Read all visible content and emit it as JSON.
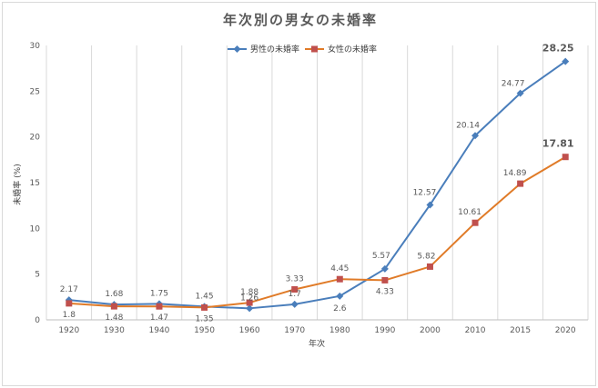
{
  "chart_data": {
    "type": "line",
    "title": "年次別の男女の未婚率",
    "xlabel": "年次",
    "ylabel": "未婚率 (%)",
    "ylim": [
      0,
      30
    ],
    "yticks": [
      "0",
      "5",
      "10",
      "15",
      "20",
      "25",
      "30"
    ],
    "categories": [
      "1920",
      "1930",
      "1940",
      "1950",
      "1960",
      "1970",
      "1980",
      "1990",
      "2000",
      "2010",
      "2015",
      "2020"
    ],
    "grid": "vertical",
    "legend": "top-center",
    "series": [
      {
        "name": "男性の未婚率",
        "color": "#4a7ebb",
        "marker": "diamond",
        "values": [
          2.17,
          1.68,
          1.75,
          1.45,
          1.26,
          1.7,
          2.6,
          5.57,
          12.57,
          20.14,
          24.77,
          28.25
        ],
        "labels": [
          "2.17",
          "1.68",
          "1.75",
          "1.45",
          "1.26",
          "1.7",
          "2.6",
          "5.57",
          "12.57",
          "20.14",
          "24.77",
          "28.25"
        ]
      },
      {
        "name": "女性の未婚率",
        "color": "#c0504d",
        "line_color": "#e07b28",
        "marker": "square",
        "values": [
          1.8,
          1.48,
          1.47,
          1.35,
          1.88,
          3.33,
          4.45,
          4.33,
          5.82,
          10.61,
          14.89,
          17.81
        ],
        "labels": [
          "1.8",
          "1.48",
          "1.47",
          "1.35",
          "1.88",
          "3.33",
          "4.45",
          "4.33",
          "5.82",
          "10.61",
          "14.89",
          "17.81"
        ]
      }
    ]
  }
}
